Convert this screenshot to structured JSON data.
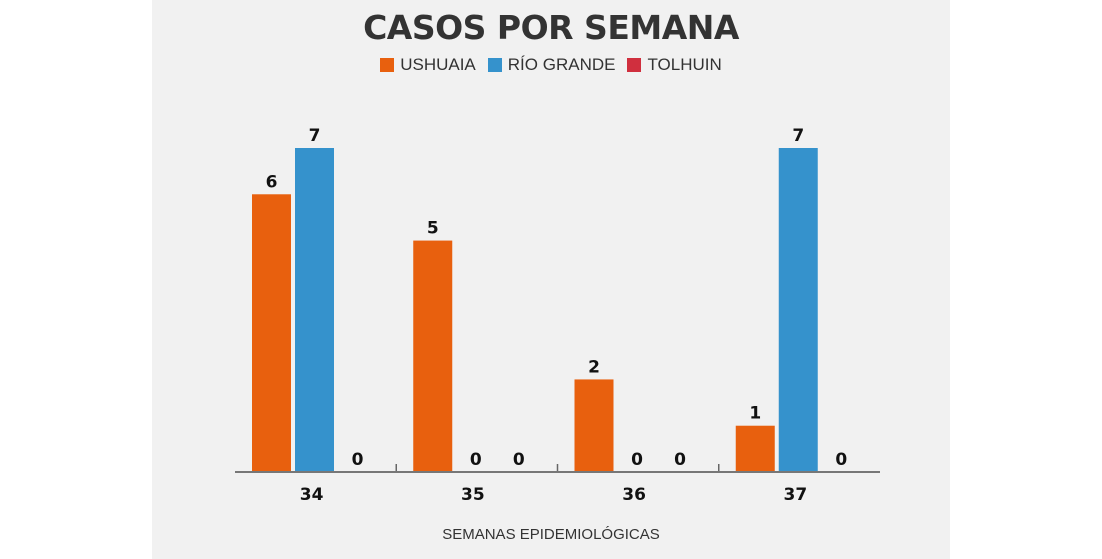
{
  "chart_data": {
    "type": "bar",
    "title": "CASOS POR SEMANA",
    "xlabel": "SEMANAS EPIDEMIOLÓGICAS",
    "ylabel": "",
    "categories": [
      "34",
      "35",
      "36",
      "37"
    ],
    "series": [
      {
        "name": "USHUAIA",
        "color": "#e8600e",
        "values": [
          6,
          5,
          2,
          1
        ]
      },
      {
        "name": "RÍO GRANDE",
        "color": "#3592cc",
        "values": [
          7,
          0,
          0,
          7
        ]
      },
      {
        "name": "TOLHUIN",
        "color": "#d02f3e",
        "values": [
          0,
          0,
          0,
          0
        ]
      }
    ],
    "ylim": [
      0,
      7
    ],
    "grid": false,
    "legend": "top-center",
    "data_labels": true
  }
}
